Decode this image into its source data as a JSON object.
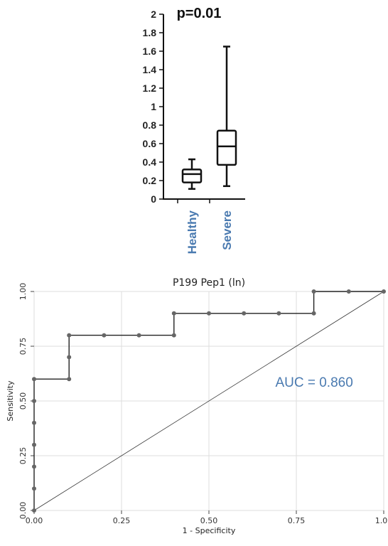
{
  "colors": {
    "category_label": "#4a7ab0",
    "auc_text": "#4a7ab0",
    "roc_point": "#666666",
    "grid": "#dddddd"
  },
  "chart_data": [
    {
      "type": "box",
      "annotation": "p=0.01",
      "ylim": [
        0,
        2
      ],
      "yticks": [
        "0",
        "0.2",
        "0.4",
        "0.6",
        "0.8",
        "1",
        "1.2",
        "1.4",
        "1.6",
        "1.8",
        "2"
      ],
      "categories": [
        "Healthy",
        "Severe"
      ],
      "boxes": [
        {
          "name": "Healthy",
          "min": 0.11,
          "q1": 0.18,
          "median": 0.27,
          "q3": 0.32,
          "max": 0.43
        },
        {
          "name": "Severe",
          "min": 0.14,
          "q1": 0.37,
          "median": 0.57,
          "q3": 0.74,
          "max": 1.65
        }
      ]
    },
    {
      "type": "line",
      "title": "P199 Pep1 (ln)",
      "xlabel": "1 - Specificity",
      "ylabel": "Sensitivity",
      "xlim": [
        0,
        1
      ],
      "ylim": [
        0,
        1
      ],
      "xticks": [
        "0.00",
        "0.25",
        "0.50",
        "0.75",
        "1.00"
      ],
      "yticks": [
        "0.00",
        "0.25",
        "0.50",
        "0.75",
        "1.00"
      ],
      "grid": true,
      "annotation": "AUC = 0.860",
      "roc_points": [
        [
          0,
          0
        ],
        [
          0,
          0.1
        ],
        [
          0,
          0.2
        ],
        [
          0,
          0.3
        ],
        [
          0,
          0.4
        ],
        [
          0,
          0.5
        ],
        [
          0,
          0.6
        ],
        [
          0.1,
          0.6
        ],
        [
          0.1,
          0.7
        ],
        [
          0.1,
          0.8
        ],
        [
          0.2,
          0.8
        ],
        [
          0.3,
          0.8
        ],
        [
          0.4,
          0.8
        ],
        [
          0.4,
          0.9
        ],
        [
          0.5,
          0.9
        ],
        [
          0.6,
          0.9
        ],
        [
          0.7,
          0.9
        ],
        [
          0.8,
          0.9
        ],
        [
          0.8,
          1.0
        ],
        [
          0.9,
          1.0
        ],
        [
          1.0,
          1.0
        ]
      ],
      "reference_line": [
        [
          0,
          0
        ],
        [
          1,
          1
        ]
      ]
    }
  ]
}
